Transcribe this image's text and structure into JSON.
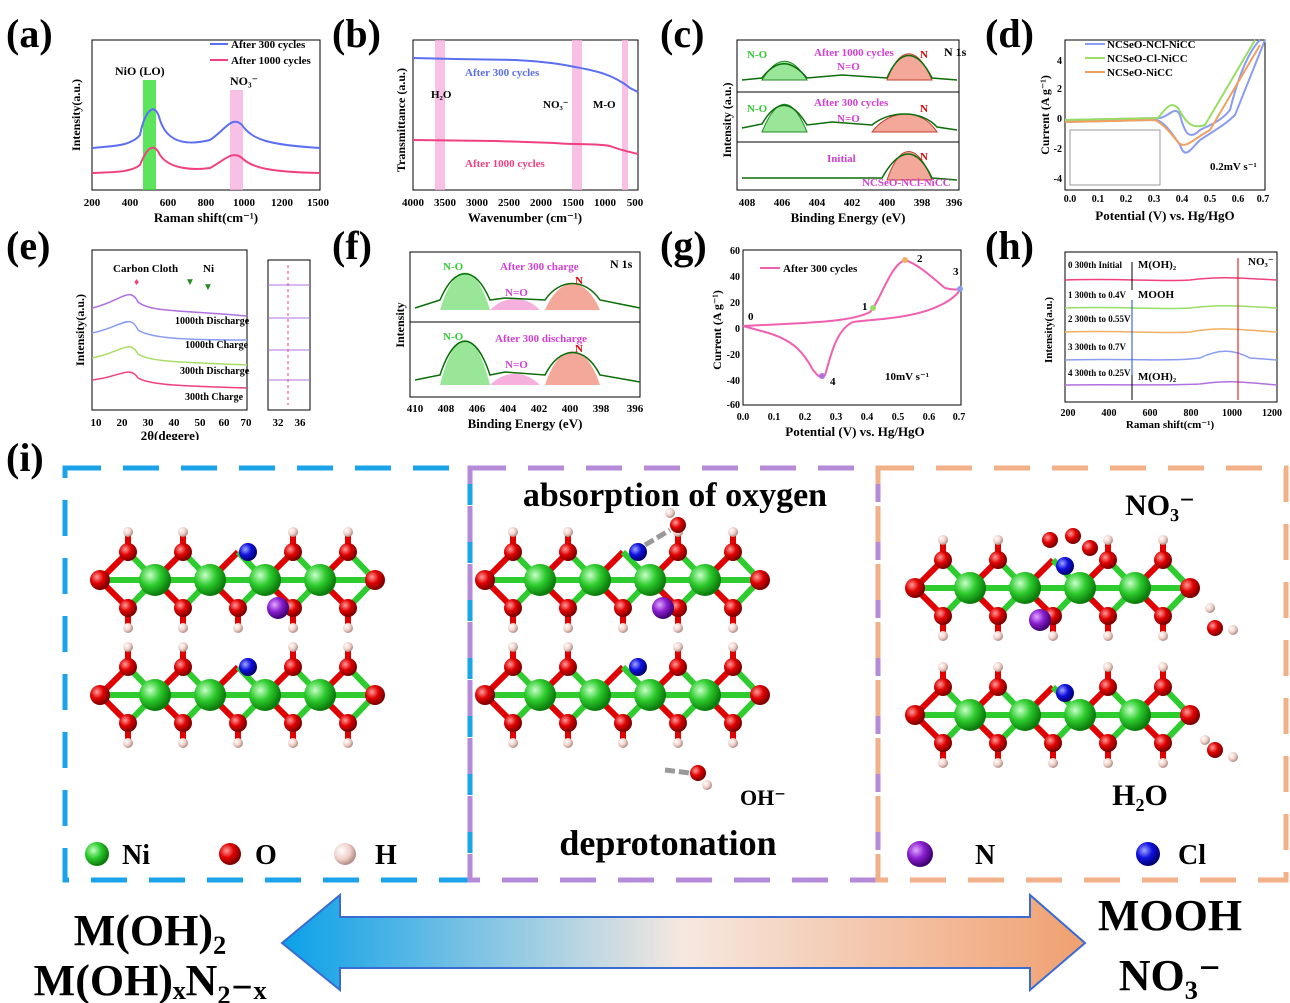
{
  "panels": {
    "a": {
      "label": "(a)",
      "xlabel": "Raman shift(cm⁻¹)",
      "ylabel": "Intensity(a.u.)",
      "xticks": [
        "200",
        "300",
        "400",
        "500",
        "600",
        "700",
        "800",
        "900",
        "1000",
        "1100",
        "1200",
        "1300",
        "1400",
        "1500"
      ],
      "legend": [
        "After 300 cycles",
        "After 1000 cycles"
      ],
      "band1": "NiO (LO)",
      "band2": "NO₃⁻"
    },
    "b": {
      "label": "(b)",
      "xlabel": "Wavenumber (cm⁻¹)",
      "ylabel": "Transmittance (a.u.)",
      "xticks": [
        "4000",
        "3500",
        "3000",
        "2500",
        "2000",
        "1500",
        "1000",
        "500"
      ],
      "curve1": "After 300 cycles",
      "curve2": "After 1000 cycles",
      "ann1": "H₂O",
      "ann2": "NO₃⁻",
      "ann3": "M-O"
    },
    "c": {
      "label": "(c)",
      "xlabel": "Binding Energy (eV)",
      "ylabel": "Intensity (a.u.)",
      "title": "N 1s",
      "xticks": [
        "408",
        "406",
        "404",
        "402",
        "400",
        "398",
        "396"
      ],
      "sub": [
        "After 1000 cycles",
        "After 300 cycles",
        "Initial"
      ],
      "no": "N-O",
      "neo": "N=O",
      "n": "N",
      "sample": "NCSeO-NCl-NiCC"
    },
    "d": {
      "label": "(d)",
      "xlabel": "Potential (V) vs. Hg/HgO",
      "ylabel": "Current (A g⁻¹)",
      "xticks": [
        "0.0",
        "0.1",
        "0.2",
        "0.3",
        "0.4",
        "0.5",
        "0.6",
        "0.7"
      ],
      "yticks": [
        "4",
        "2",
        "0",
        "-2",
        "-4"
      ],
      "legend": [
        "NCSeO-NCl-NiCC",
        "NCSeO-Cl-NiCC",
        "NCSeO-NiCC"
      ],
      "rate": "0.2mV s⁻¹"
    },
    "e": {
      "label": "(e)",
      "xlabel": "2θ(degere)",
      "ylabel": "Intensity(a.u.)",
      "xticks": [
        "10",
        "20",
        "30",
        "40",
        "50",
        "60",
        "70"
      ],
      "xticks2": [
        "32",
        "36"
      ],
      "cc": "Carbon Cloth",
      "ni": "Ni",
      "curves": [
        "1000th Discharge",
        "1000th Charge",
        "300th Discharge",
        "300th Charge"
      ]
    },
    "f": {
      "label": "(f)",
      "xlabel": "Binding Energy (eV)",
      "ylabel": "Intensity",
      "title": "N 1s",
      "xticks": [
        "410",
        "408",
        "406",
        "404",
        "402",
        "400",
        "398",
        "396"
      ],
      "sub": [
        "After 300 charge",
        "After 300 discharge"
      ],
      "no": "N-O",
      "neo": "N=O",
      "n": "N"
    },
    "g": {
      "label": "(g)",
      "xlabel": "Potential (V) vs. Hg/HgO",
      "ylabel": "Current (A g⁻¹)",
      "xticks": [
        "0.0",
        "0.1",
        "0.2",
        "0.3",
        "0.4",
        "0.5",
        "0.6",
        "0.7"
      ],
      "yticks": [
        "60",
        "40",
        "20",
        "0",
        "-20",
        "-40",
        "-60"
      ],
      "legend": "After 300 cycles",
      "rate": "10mV s⁻¹",
      "pts": [
        "0",
        "1",
        "2",
        "3",
        "4"
      ]
    },
    "h": {
      "label": "(h)",
      "xlabel": "Raman shift(cm⁻¹)",
      "ylabel": "Intensity(a.u.)",
      "xticks": [
        "200",
        "400",
        "600",
        "800",
        "1000",
        "1200"
      ],
      "rows": [
        "0 300th Initial",
        "1 300th to 0.4V",
        "2 300th to 0.55V",
        "3 300th to 0.7V",
        "4 300th to 0.25V"
      ],
      "moh": "M(OH)₂",
      "mooh": "MOOH",
      "no3": "NO₃⁻",
      "moh2": "M(OH)₂"
    },
    "i": {
      "label": "(i)",
      "mid_top": "absorption of oxygen",
      "mid_bottom": "deprotonation",
      "oh": "OH⁻",
      "right_top": "NO₃⁻",
      "right_bottom": "H₂O",
      "legend": [
        "Ni",
        "O",
        "H",
        "N",
        "Cl"
      ],
      "left_big1": "M(OH)₂",
      "left_big2": "M(OH)ₓN₂₋ₓ",
      "right_big1": "MOOH",
      "right_big2": "NO₃⁻"
    }
  },
  "colors": {
    "blue": "#5b6ff0",
    "pink": "#f0407f",
    "green": "#33cc33",
    "red": "#e00000",
    "white": "#f0d8d0",
    "purple": "#7a1fb8",
    "navy": "#0000cc",
    "box1": "#1aa3e8",
    "box2": "#b58ad8",
    "box3": "#f2b088"
  }
}
